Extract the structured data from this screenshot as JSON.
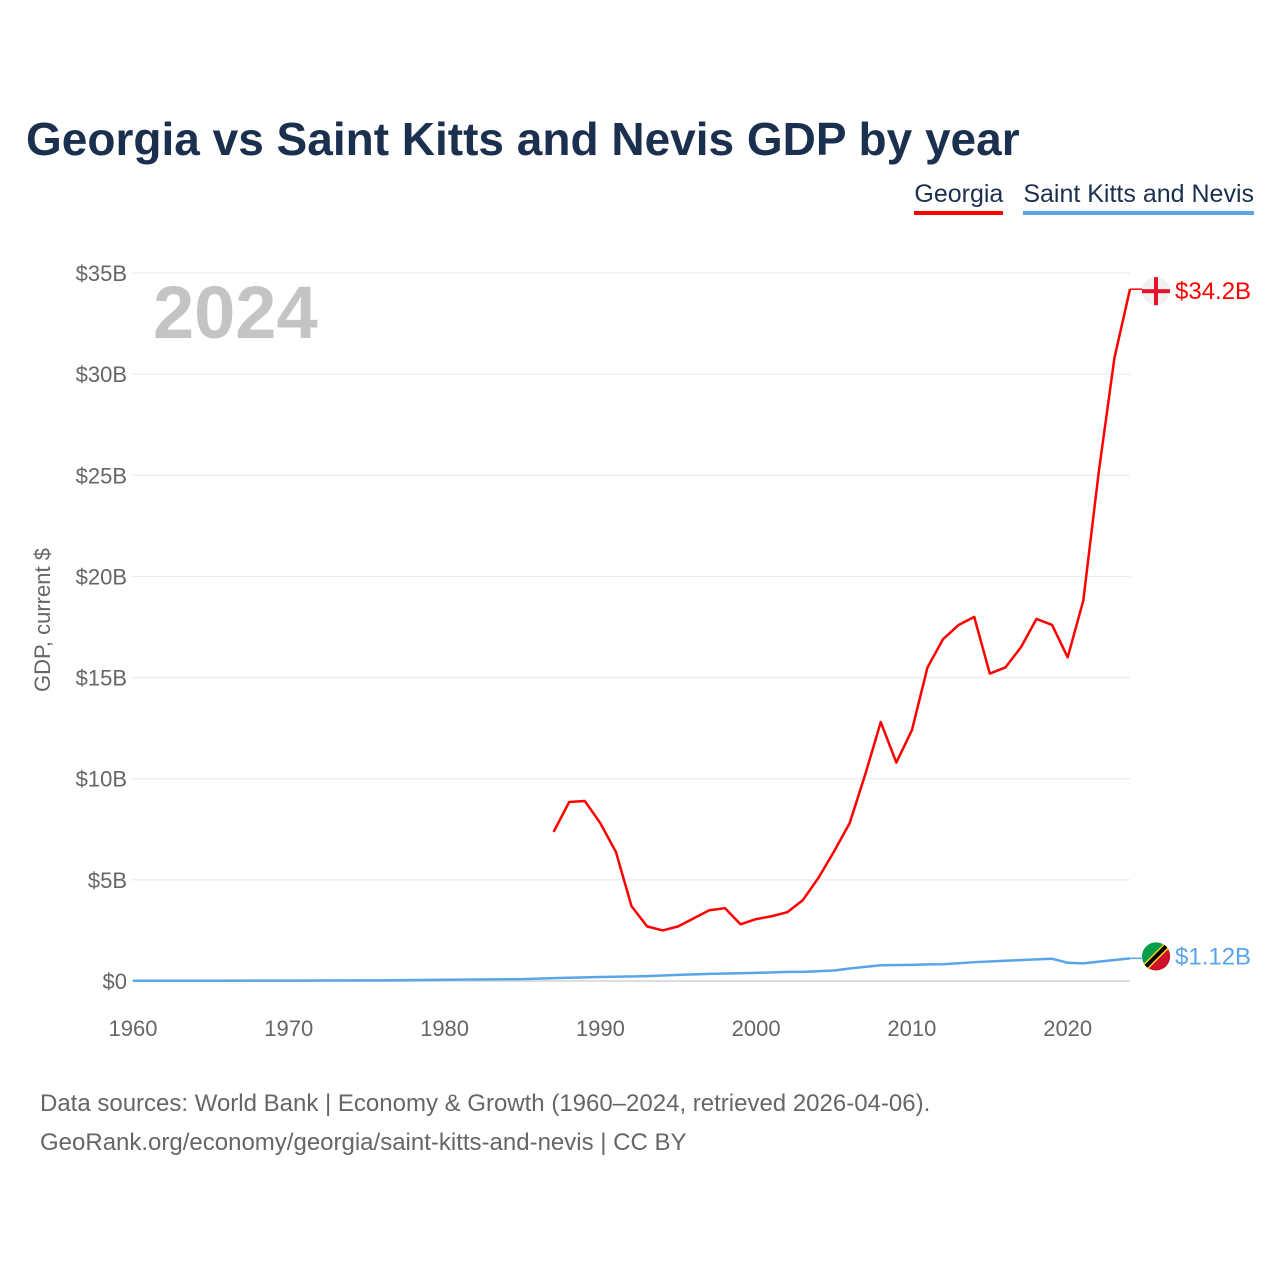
{
  "title": "Georgia vs Saint Kitts and Nevis GDP by year",
  "source_line1": "Data sources: World Bank | Economy & Growth (1960–2024, retrieved 2026-04-06).",
  "source_line2": "GeoRank.org/economy/georgia/saint-kitts-and-nevis | CC BY",
  "chart_data": {
    "type": "line",
    "title": "Georgia vs Saint Kitts and Nevis GDP by year",
    "xlabel": "",
    "ylabel": "GDP, current $",
    "year_watermark": "2024",
    "xlim": [
      1960,
      2024
    ],
    "ylim": [
      0,
      35
    ],
    "x_ticks": [
      1960,
      1970,
      1980,
      1990,
      2000,
      2010,
      2020
    ],
    "y_ticks": [
      0,
      5,
      10,
      15,
      20,
      25,
      30,
      35
    ],
    "y_tick_labels": [
      "$0",
      "$5B",
      "$10B",
      "$15B",
      "$20B",
      "$25B",
      "$30B",
      "$35B"
    ],
    "grid": true,
    "legend_position": "top-right",
    "series": [
      {
        "name": "Georgia",
        "color": "#ff0000",
        "end_label": "$34.2B",
        "x": [
          1987,
          1988,
          1989,
          1990,
          1991,
          1992,
          1993,
          1994,
          1995,
          1996,
          1997,
          1998,
          1999,
          2000,
          2001,
          2002,
          2003,
          2004,
          2005,
          2006,
          2007,
          2008,
          2009,
          2010,
          2011,
          2012,
          2013,
          2014,
          2015,
          2016,
          2017,
          2018,
          2019,
          2020,
          2021,
          2022,
          2023,
          2024
        ],
        "values": [
          7.37,
          8.85,
          8.9,
          7.8,
          6.38,
          3.7,
          2.7,
          2.5,
          2.7,
          3.1,
          3.5,
          3.6,
          2.8,
          3.06,
          3.2,
          3.4,
          4.0,
          5.1,
          6.4,
          7.8,
          10.2,
          12.8,
          10.8,
          12.4,
          15.5,
          16.9,
          17.6,
          18.0,
          15.2,
          15.5,
          16.5,
          17.9,
          17.6,
          16.0,
          18.8,
          25.2,
          30.8,
          34.2
        ]
      },
      {
        "name": "Saint Kitts and Nevis",
        "color": "#5aa5ea",
        "end_label": "$1.12B",
        "x": [
          1960,
          1965,
          1970,
          1975,
          1976,
          1980,
          1985,
          1987,
          1990,
          1993,
          1995,
          1997,
          2000,
          2002,
          2003,
          2005,
          2006,
          2008,
          2010,
          2011,
          2012,
          2014,
          2016,
          2018,
          2019,
          2020,
          2021,
          2022,
          2024
        ],
        "values": [
          0.01,
          0.012,
          0.02,
          0.03,
          0.03,
          0.06,
          0.09,
          0.14,
          0.2,
          0.24,
          0.3,
          0.35,
          0.4,
          0.45,
          0.45,
          0.52,
          0.62,
          0.78,
          0.8,
          0.82,
          0.83,
          0.93,
          1.0,
          1.07,
          1.1,
          0.9,
          0.87,
          0.96,
          1.12
        ]
      }
    ]
  }
}
